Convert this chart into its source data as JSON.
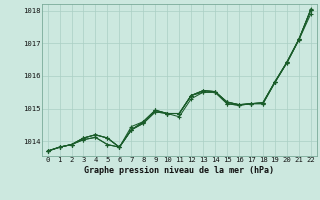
{
  "title": "Graphe pression niveau de la mer (hPa)",
  "background_color": "#cce8df",
  "grid_color": "#aacfc4",
  "line_color": "#1a5c2a",
  "xlim": [
    -0.5,
    22.5
  ],
  "ylim": [
    1013.55,
    1018.2
  ],
  "xticks": [
    0,
    1,
    2,
    3,
    4,
    5,
    6,
    7,
    8,
    9,
    10,
    11,
    12,
    13,
    14,
    15,
    16,
    17,
    18,
    19,
    20,
    21,
    22
  ],
  "yticks": [
    1014,
    1015,
    1016,
    1017,
    1018
  ],
  "series": [
    [
      1013.7,
      1013.82,
      1013.9,
      1014.05,
      1014.12,
      1013.9,
      1013.82,
      1014.45,
      1014.6,
      1014.95,
      1014.85,
      1014.85,
      1015.4,
      1015.5,
      1015.5,
      1015.15,
      1015.1,
      1015.15,
      1015.15,
      1015.8,
      1016.4,
      1017.1,
      1017.9
    ],
    [
      1013.7,
      1013.82,
      1013.9,
      1014.05,
      1014.12,
      1013.9,
      1013.82,
      1014.35,
      1014.55,
      1014.9,
      1014.85,
      1014.75,
      1015.3,
      1015.5,
      1015.5,
      1015.15,
      1015.1,
      1015.15,
      1015.15,
      1015.8,
      1016.4,
      1017.1,
      1018.05
    ],
    [
      1013.7,
      1013.82,
      1013.9,
      1014.1,
      1014.2,
      1014.1,
      1013.82,
      1014.35,
      1014.55,
      1014.9,
      1014.85,
      1014.85,
      1015.4,
      1015.55,
      1015.52,
      1015.2,
      1015.12,
      1015.15,
      1015.18,
      1015.82,
      1016.42,
      1017.12,
      1018.02
    ],
    [
      1013.7,
      1013.82,
      1013.9,
      1014.1,
      1014.2,
      1014.1,
      1013.82,
      1014.35,
      1014.6,
      1014.95,
      1014.85,
      1014.85,
      1015.4,
      1015.55,
      1015.52,
      1015.2,
      1015.12,
      1015.15,
      1015.18,
      1015.82,
      1016.42,
      1017.12,
      1018.02
    ],
    [
      1013.7,
      1013.82,
      1013.9,
      1014.1,
      1014.2,
      1014.1,
      1013.82,
      1014.35,
      1014.6,
      1014.95,
      1014.85,
      1014.85,
      1015.4,
      1015.55,
      1015.52,
      1015.2,
      1015.12,
      1015.15,
      1015.18,
      1015.82,
      1016.42,
      1017.12,
      1018.02
    ]
  ],
  "marker": "+",
  "title_fontsize": 6.0,
  "tick_fontsize": 5.2
}
